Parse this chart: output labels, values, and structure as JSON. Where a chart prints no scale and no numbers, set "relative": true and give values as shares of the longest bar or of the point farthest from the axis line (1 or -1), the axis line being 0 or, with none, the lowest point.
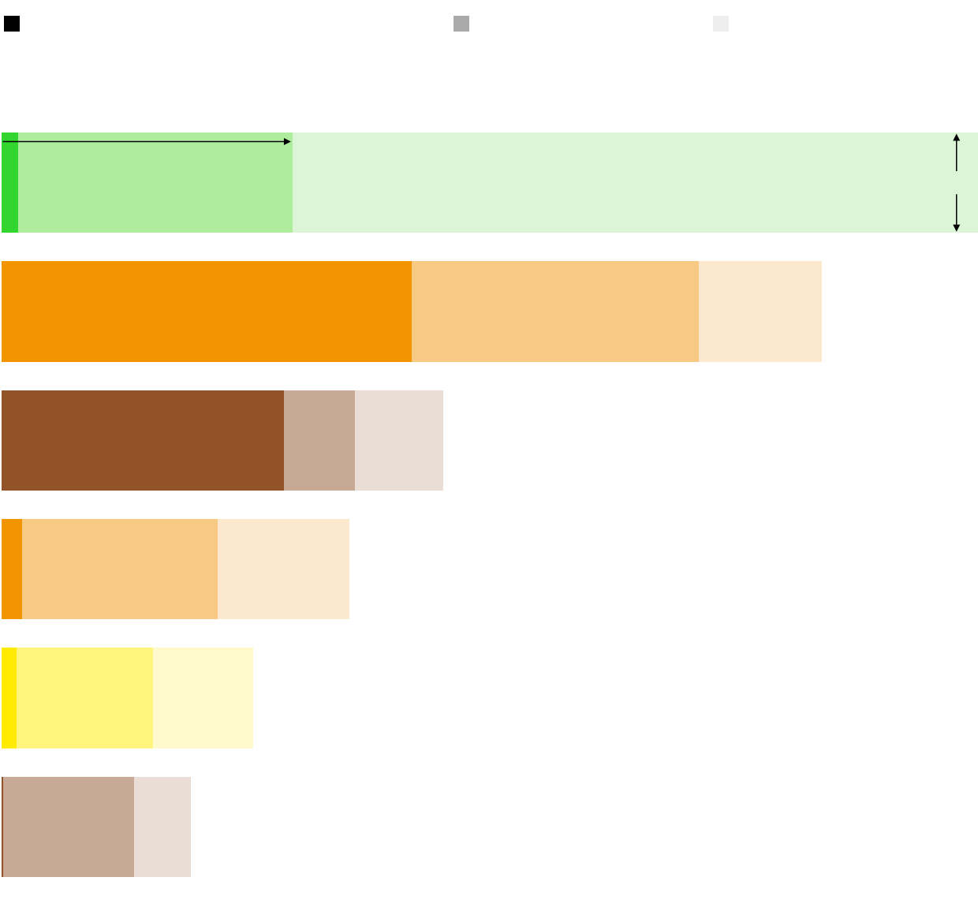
{
  "chart_data": {
    "type": "bar",
    "orientation": "horizontal",
    "stacked": true,
    "relative": true,
    "categories": [
      null,
      null,
      null,
      null,
      null,
      null
    ],
    "series": [
      {
        "colors": [
          "#33d62f",
          "#f29400",
          "#935329",
          "#f29400",
          "#ffea00",
          "#935329"
        ],
        "values": [
          0.017,
          0.42,
          0.289,
          0.021,
          0.015,
          0.002
        ]
      },
      {
        "colors": [
          "#aeed9b",
          "#f8c983",
          "#c8a995",
          "#f8c983",
          "#fff47d",
          "#c8a995"
        ],
        "values": [
          0.281,
          0.294,
          0.073,
          0.2,
          0.14,
          0.134
        ]
      },
      {
        "colors": [
          "#dcf5d6",
          "#fce8cc",
          "#e9ddd5",
          "#fce8cc",
          "#fff9cc",
          "#e9ddd5"
        ],
        "values": [
          0.702,
          0.126,
          0.09,
          0.135,
          0.103,
          0.058
        ]
      }
    ]
  }
}
